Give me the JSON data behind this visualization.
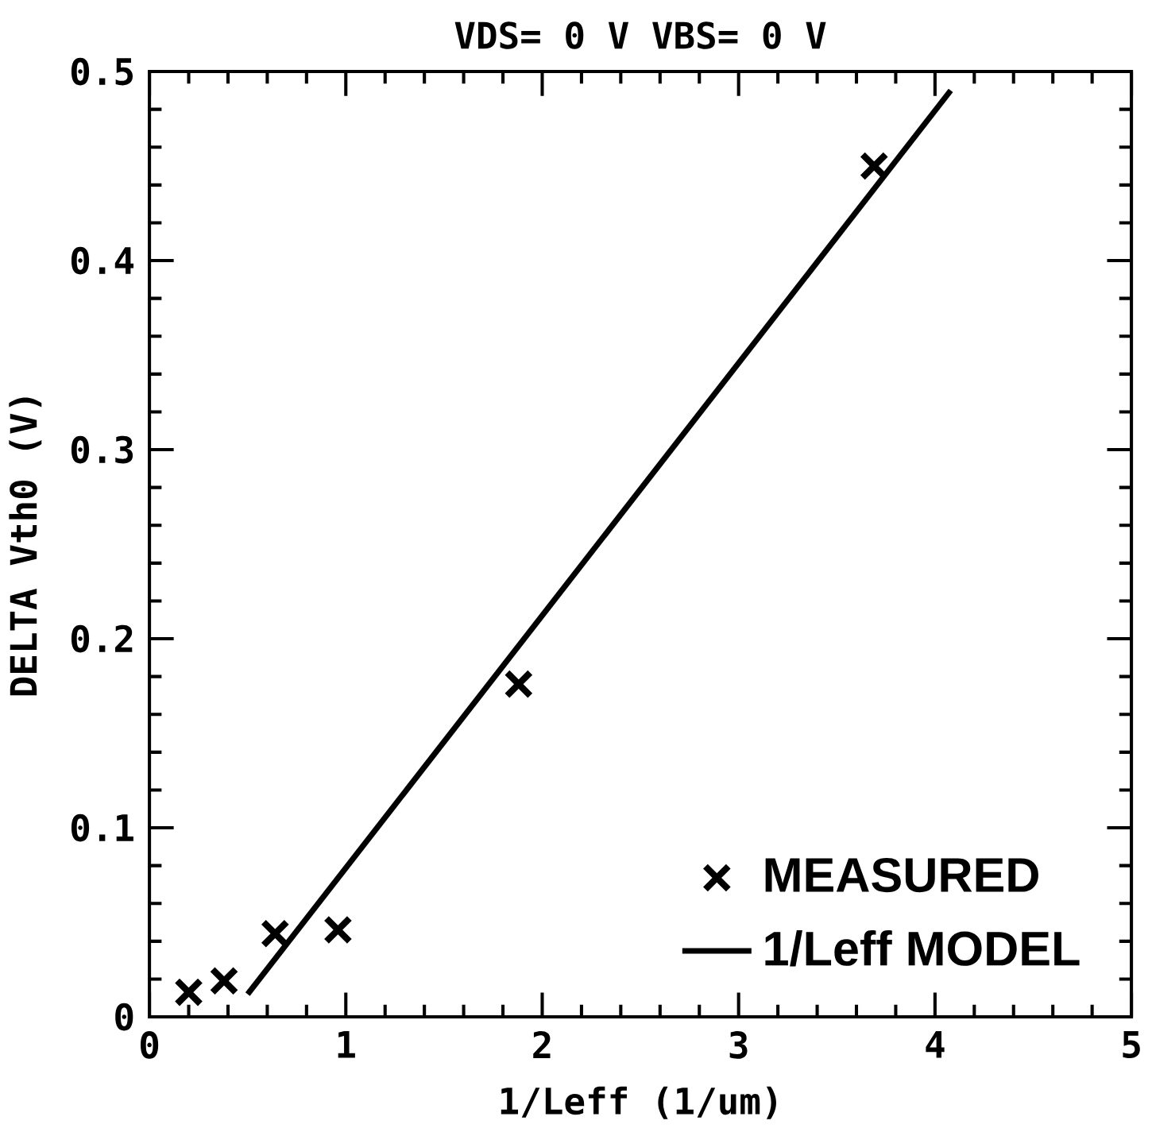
{
  "chart_data": {
    "type": "scatter",
    "title": "VDS= 0 V   VBS= 0 V",
    "xlabel": "1/Leff (1/um)",
    "ylabel": "DELTA Vth0 (V)",
    "xlim": [
      0,
      5
    ],
    "ylim": [
      0,
      0.5
    ],
    "xticks": [
      0,
      1,
      2,
      3,
      4,
      5
    ],
    "yticks": [
      0,
      0.1,
      0.2,
      0.3,
      0.4,
      0.5
    ],
    "legend": "bottom right",
    "grid": false,
    "series": [
      {
        "name": "MEASURED",
        "marker": "cross",
        "color": "#000000",
        "x": [
          0.2,
          0.38,
          0.64,
          0.96,
          1.88,
          3.69
        ],
        "values": [
          0.013,
          0.019,
          0.044,
          0.046,
          0.176,
          0.45
        ]
      },
      {
        "name": "1/Leff MODEL",
        "type": "line",
        "marker": "none",
        "line_style": "solid",
        "color": "#000000",
        "x": [
          0.5,
          4.08
        ],
        "values": [
          0.012,
          0.49
        ]
      }
    ]
  }
}
